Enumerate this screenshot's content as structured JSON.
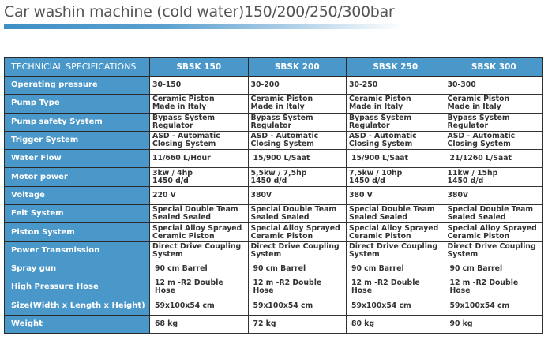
{
  "title": "Car washin machine (cold water)150/200/250/300bar",
  "colors": {
    "header_blue": "#4a97c9",
    "title_bar": "#3f8fc6"
  },
  "table": {
    "headers": [
      "TECHNICIAL SPECIFICATIONS",
      "SBSK 150",
      "SBSK 200",
      "SBSK 250",
      "SBSK 300"
    ],
    "rows": [
      {
        "label": "Operating pressure",
        "values": [
          [
            "30-150"
          ],
          [
            "30-200"
          ],
          [
            "30-250"
          ],
          [
            "30-300"
          ]
        ]
      },
      {
        "label": "Pump Type",
        "values": [
          [
            "Ceramic Piston",
            "Made in Italy"
          ],
          [
            "Ceramic Piston",
            "Made in Italy"
          ],
          [
            "Ceramic Piston",
            "Made in Italy"
          ],
          [
            "Ceramic Piston",
            "Made in Italy"
          ]
        ]
      },
      {
        "label": "Pump safety System",
        "values": [
          [
            "Bypass System",
            "Regulator"
          ],
          [
            "Bypass System",
            "Regulator"
          ],
          [
            "Bypass System",
            "Regulator"
          ],
          [
            "Bypass System",
            "Regulator"
          ]
        ]
      },
      {
        "label": "Trigger System",
        "values": [
          [
            "ASD - Automatic",
            "Closing System"
          ],
          [
            "ASD - Automatic",
            "Closing System"
          ],
          [
            "ASD - Automatic",
            "Closing System"
          ],
          [
            "ASD - Automatic",
            "Closing System"
          ]
        ]
      },
      {
        "label": "Water Flow",
        "values": [
          [
            "11/660 L/Hour"
          ],
          [
            "15/900 L/Saat"
          ],
          [
            "15/900 L/Saat"
          ],
          [
            "21/1260 L/Saat"
          ]
        ]
      },
      {
        "label": "Motor power",
        "values": [
          [
            "3kw / 4hp",
            "1450 d/d"
          ],
          [
            "5,5kw / 7,5hp",
            "1450 d/d"
          ],
          [
            "7,5kw / 10hp",
            "1450 d/d"
          ],
          [
            "11kw / 15hp",
            "1450 d/d"
          ]
        ]
      },
      {
        "label": "Voltage",
        "values": [
          [
            "220 V"
          ],
          [
            "380V"
          ],
          [
            "380 V"
          ],
          [
            "380V"
          ]
        ]
      },
      {
        "label": "Felt System",
        "values": [
          [
            "Special Double Team",
            "Sealed Sealed"
          ],
          [
            "Special Double Team",
            "Sealed Sealed"
          ],
          [
            "Special Double Team",
            "Sealed Sealed"
          ],
          [
            "Special Double Team",
            "Sealed Sealed"
          ]
        ]
      },
      {
        "label": "Piston System",
        "values": [
          [
            "Special Alloy Sprayed",
            "Ceramic Piston"
          ],
          [
            "Special Alloy Sprayed",
            "Ceramic Piston"
          ],
          [
            "Special Alloy Sprayed",
            "Ceramic Piston"
          ],
          [
            "Special Alloy Sprayed",
            "Ceramic Piston"
          ]
        ]
      },
      {
        "label": "Power Transmission",
        "values": [
          [
            "Direct Drive Coupling System"
          ],
          [
            "Direct Drive Coupling System"
          ],
          [
            "Direct Drive Coupling System"
          ],
          [
            "Direct Drive Coupling System"
          ]
        ]
      },
      {
        "label": "Spray gun",
        "values": [
          [
            "90 cm Barrel"
          ],
          [
            "90 cm Barrel"
          ],
          [
            "90 cm Barrel"
          ],
          [
            "90 cm Barrel"
          ]
        ]
      },
      {
        "label": "High Pressure Hose",
        "values": [
          [
            "12 m -R2 Double Hose"
          ],
          [
            "12 m -R2 Double Hose"
          ],
          [
            "12 m -R2 Double Hose"
          ],
          [
            "12 m -R2 Double Hose"
          ]
        ]
      },
      {
        "label": "Size(Width x Length x Height)",
        "values": [
          [
            "59x100x54 cm"
          ],
          [
            "59x100x54 cm"
          ],
          [
            "59x100x54 cm"
          ],
          [
            "59x100x54 cm"
          ]
        ]
      },
      {
        "label": "Weight",
        "values": [
          [
            "68 kg"
          ],
          [
            "72 kg"
          ],
          [
            "80 kg"
          ],
          [
            "90 kg"
          ]
        ]
      }
    ]
  }
}
